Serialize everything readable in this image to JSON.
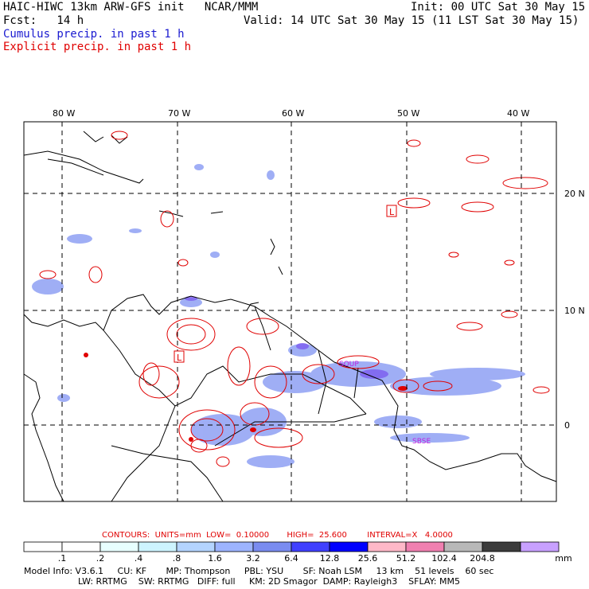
{
  "header": {
    "title": "HAIC-HIWC 13km ARW-GFS init   NCAR/MMM",
    "init": "Init: 00 UTC Sat 30 May 15",
    "fcst": "Fcst:   14 h",
    "valid": "Valid: 14 UTC Sat 30 May 15 (11 LST Sat 30 May 15)",
    "cumulus": "Cumulus precip. in past 1 h",
    "explicit": "Explicit precip. in past 1 h"
  },
  "map": {
    "lon_labels": [
      "80 W",
      "70 W",
      "60 W",
      "50 W",
      "40 W"
    ],
    "lat_labels": [
      "20 N",
      "10 N",
      "0"
    ],
    "high_marker": "L",
    "region_labels": [
      "SOUP",
      "SBSE"
    ],
    "colors": {
      "coast": "#000000",
      "explicit_contour": "#e00000",
      "cumulus_fill": "#7a8cf0",
      "grid": "#000000"
    }
  },
  "colorbar": {
    "labels": [
      ".1",
      ".2",
      ".4",
      ".8",
      "1.6",
      "3.2",
      "6.4",
      "12.8",
      "25.6",
      "51.2",
      "102.4",
      "204.8"
    ],
    "unit": "mm",
    "colors": [
      "#ffffff",
      "#ffffff",
      "#e8ffff",
      "#cdf4ff",
      "#b4d4ff",
      "#9db4ff",
      "#7a8cf0",
      "#4040ff",
      "#0000ff",
      "#ffb8c8",
      "#f080b0",
      "#b8b8b8",
      "#3c3c3c",
      "#c8a0ff"
    ]
  },
  "contours": {
    "text": "CONTOURS:  UNITS=mm  LOW=  0.10000       HIGH=  25.600        INTERVAL=X   4.0000"
  },
  "model_info": {
    "line1": "Model Info: V3.6.1     CU: KF       MP: Thompson     PBL: YSU       SF: Noah LSM     13 km    51 levels    60 sec",
    "line2": "LW: RRTMG    SW: RRTMG   DIFF: full     KM: 2D Smagor  DAMP: Rayleigh3    SFLAY: MM5"
  }
}
